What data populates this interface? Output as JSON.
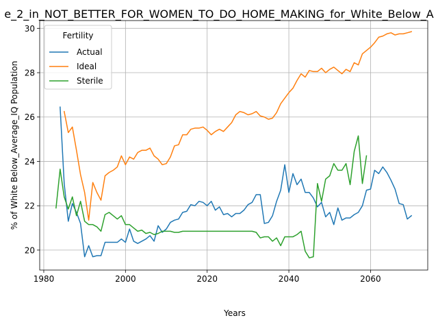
{
  "chart_data": {
    "type": "line",
    "title": "e_2_in_NOT_BETTER_FOR_WOMEN_TO_DO_HOME_MAKING_for_White_Below_A",
    "xlabel": "Years",
    "ylabel": "% of White Below_Average_IQ Population",
    "xlim": [
      1979,
      2074
    ],
    "ylim": [
      19.1,
      30.35
    ],
    "xticks": [
      1980,
      2000,
      2020,
      2040,
      2060
    ],
    "yticks": [
      20,
      22,
      24,
      26,
      28,
      30
    ],
    "grid": true,
    "legend": {
      "title": "Fertility",
      "position": "top-left"
    },
    "series": [
      {
        "name": "Actual",
        "color": "#1f77b4",
        "points": [
          [
            1984,
            26.45
          ],
          [
            1985,
            23.0
          ],
          [
            1986,
            21.3
          ],
          [
            1987,
            22.1
          ],
          [
            1988,
            21.7
          ],
          [
            1989,
            21.2
          ],
          [
            1990,
            19.7
          ],
          [
            1991,
            20.2
          ],
          [
            1992,
            19.7
          ],
          [
            1993,
            19.75
          ],
          [
            1994,
            19.75
          ],
          [
            1995,
            20.35
          ],
          [
            1996,
            20.35
          ],
          [
            1997,
            20.35
          ],
          [
            1998,
            20.35
          ],
          [
            1999,
            20.5
          ],
          [
            2000,
            20.35
          ],
          [
            2001,
            20.95
          ],
          [
            2002,
            20.4
          ],
          [
            2003,
            20.3
          ],
          [
            2004,
            20.4
          ],
          [
            2005,
            20.5
          ],
          [
            2006,
            20.65
          ],
          [
            2007,
            20.4
          ],
          [
            2008,
            21.1
          ],
          [
            2009,
            20.8
          ],
          [
            2010,
            20.95
          ],
          [
            2011,
            21.25
          ],
          [
            2012,
            21.35
          ],
          [
            2013,
            21.4
          ],
          [
            2014,
            21.7
          ],
          [
            2015,
            21.75
          ],
          [
            2016,
            22.05
          ],
          [
            2017,
            22.0
          ],
          [
            2018,
            22.2
          ],
          [
            2019,
            22.15
          ],
          [
            2020,
            22.0
          ],
          [
            2021,
            22.2
          ],
          [
            2022,
            21.8
          ],
          [
            2023,
            21.95
          ],
          [
            2024,
            21.6
          ],
          [
            2025,
            21.65
          ],
          [
            2026,
            21.5
          ],
          [
            2027,
            21.65
          ],
          [
            2028,
            21.65
          ],
          [
            2029,
            21.8
          ],
          [
            2030,
            22.05
          ],
          [
            2031,
            22.15
          ],
          [
            2032,
            22.5
          ],
          [
            2033,
            22.5
          ],
          [
            2034,
            21.2
          ],
          [
            2035,
            21.25
          ],
          [
            2036,
            21.55
          ],
          [
            2037,
            22.2
          ],
          [
            2038,
            22.7
          ],
          [
            2039,
            23.85
          ],
          [
            2040,
            22.6
          ],
          [
            2041,
            23.45
          ],
          [
            2042,
            22.95
          ],
          [
            2043,
            23.2
          ],
          [
            2044,
            22.6
          ],
          [
            2045,
            22.6
          ],
          [
            2046,
            22.35
          ],
          [
            2047,
            21.95
          ],
          [
            2048,
            22.15
          ],
          [
            2049,
            21.5
          ],
          [
            2050,
            21.7
          ],
          [
            2051,
            21.15
          ],
          [
            2052,
            21.9
          ],
          [
            2053,
            21.35
          ],
          [
            2054,
            21.45
          ],
          [
            2055,
            21.45
          ],
          [
            2056,
            21.6
          ],
          [
            2057,
            21.7
          ],
          [
            2058,
            22.0
          ],
          [
            2059,
            22.7
          ],
          [
            2060,
            22.75
          ],
          [
            2061,
            23.6
          ],
          [
            2062,
            23.45
          ],
          [
            2063,
            23.75
          ],
          [
            2064,
            23.5
          ],
          [
            2065,
            23.15
          ],
          [
            2066,
            22.75
          ],
          [
            2067,
            22.1
          ],
          [
            2068,
            22.05
          ],
          [
            2069,
            21.4
          ],
          [
            2070,
            21.55
          ]
        ]
      },
      {
        "name": "Ideal",
        "color": "#ff7f0e",
        "points": [
          [
            1985,
            26.25
          ],
          [
            1986,
            25.3
          ],
          [
            1987,
            25.55
          ],
          [
            1988,
            24.5
          ],
          [
            1989,
            23.4
          ],
          [
            1990,
            22.6
          ],
          [
            1991,
            21.35
          ],
          [
            1992,
            23.05
          ],
          [
            1993,
            22.6
          ],
          [
            1994,
            22.25
          ],
          [
            1995,
            23.35
          ],
          [
            1996,
            23.5
          ],
          [
            1997,
            23.6
          ],
          [
            1998,
            23.75
          ],
          [
            1999,
            24.25
          ],
          [
            2000,
            23.85
          ],
          [
            2001,
            24.2
          ],
          [
            2002,
            24.1
          ],
          [
            2003,
            24.4
          ],
          [
            2004,
            24.5
          ],
          [
            2005,
            24.5
          ],
          [
            2006,
            24.6
          ],
          [
            2007,
            24.25
          ],
          [
            2008,
            24.1
          ],
          [
            2009,
            23.85
          ],
          [
            2010,
            23.9
          ],
          [
            2011,
            24.2
          ],
          [
            2012,
            24.7
          ],
          [
            2013,
            24.75
          ],
          [
            2014,
            25.2
          ],
          [
            2015,
            25.2
          ],
          [
            2016,
            25.45
          ],
          [
            2017,
            25.5
          ],
          [
            2018,
            25.5
          ],
          [
            2019,
            25.55
          ],
          [
            2020,
            25.4
          ],
          [
            2021,
            25.2
          ],
          [
            2022,
            25.35
          ],
          [
            2023,
            25.45
          ],
          [
            2024,
            25.35
          ],
          [
            2025,
            25.55
          ],
          [
            2026,
            25.75
          ],
          [
            2027,
            26.1
          ],
          [
            2028,
            26.25
          ],
          [
            2029,
            26.2
          ],
          [
            2030,
            26.1
          ],
          [
            2031,
            26.15
          ],
          [
            2032,
            26.25
          ],
          [
            2033,
            26.05
          ],
          [
            2034,
            26.0
          ],
          [
            2035,
            25.9
          ],
          [
            2036,
            25.95
          ],
          [
            2037,
            26.2
          ],
          [
            2038,
            26.6
          ],
          [
            2039,
            26.85
          ],
          [
            2040,
            27.1
          ],
          [
            2041,
            27.3
          ],
          [
            2042,
            27.65
          ],
          [
            2043,
            27.95
          ],
          [
            2044,
            27.8
          ],
          [
            2045,
            28.1
          ],
          [
            2046,
            28.05
          ],
          [
            2047,
            28.05
          ],
          [
            2048,
            28.2
          ],
          [
            2049,
            28.0
          ],
          [
            2050,
            28.15
          ],
          [
            2051,
            28.25
          ],
          [
            2052,
            28.1
          ],
          [
            2053,
            27.95
          ],
          [
            2054,
            28.15
          ],
          [
            2055,
            28.05
          ],
          [
            2056,
            28.45
          ],
          [
            2057,
            28.35
          ],
          [
            2058,
            28.85
          ],
          [
            2059,
            29.0
          ],
          [
            2060,
            29.15
          ],
          [
            2061,
            29.35
          ],
          [
            2062,
            29.6
          ],
          [
            2063,
            29.65
          ],
          [
            2064,
            29.75
          ],
          [
            2065,
            29.8
          ],
          [
            2066,
            29.7
          ],
          [
            2067,
            29.75
          ],
          [
            2068,
            29.75
          ],
          [
            2069,
            29.8
          ],
          [
            2070,
            29.85
          ]
        ]
      },
      {
        "name": "Sterile",
        "color": "#2ca02c",
        "points": [
          [
            1983,
            21.9
          ],
          [
            1984,
            23.65
          ],
          [
            1985,
            22.4
          ],
          [
            1986,
            21.85
          ],
          [
            1987,
            22.4
          ],
          [
            1988,
            21.55
          ],
          [
            1989,
            22.2
          ],
          [
            1990,
            21.3
          ],
          [
            1991,
            21.15
          ],
          [
            1992,
            21.15
          ],
          [
            1993,
            21.05
          ],
          [
            1994,
            20.85
          ],
          [
            1995,
            21.6
          ],
          [
            1996,
            21.7
          ],
          [
            1997,
            21.55
          ],
          [
            1998,
            21.4
          ],
          [
            1999,
            21.55
          ],
          [
            2000,
            21.15
          ],
          [
            2001,
            21.15
          ],
          [
            2002,
            21.0
          ],
          [
            2003,
            20.85
          ],
          [
            2004,
            20.9
          ],
          [
            2005,
            20.75
          ],
          [
            2006,
            20.8
          ],
          [
            2007,
            20.7
          ],
          [
            2008,
            20.75
          ],
          [
            2009,
            20.85
          ],
          [
            2010,
            20.85
          ],
          [
            2011,
            20.85
          ],
          [
            2012,
            20.8
          ],
          [
            2013,
            20.8
          ],
          [
            2014,
            20.85
          ],
          [
            2015,
            20.85
          ],
          [
            2016,
            20.85
          ],
          [
            2017,
            20.85
          ],
          [
            2018,
            20.85
          ],
          [
            2019,
            20.85
          ],
          [
            2020,
            20.85
          ],
          [
            2021,
            20.85
          ],
          [
            2022,
            20.85
          ],
          [
            2023,
            20.85
          ],
          [
            2024,
            20.85
          ],
          [
            2025,
            20.85
          ],
          [
            2026,
            20.85
          ],
          [
            2027,
            20.85
          ],
          [
            2028,
            20.85
          ],
          [
            2029,
            20.85
          ],
          [
            2030,
            20.85
          ],
          [
            2031,
            20.85
          ],
          [
            2032,
            20.8
          ],
          [
            2033,
            20.55
          ],
          [
            2034,
            20.6
          ],
          [
            2035,
            20.6
          ],
          [
            2036,
            20.4
          ],
          [
            2037,
            20.55
          ],
          [
            2038,
            20.2
          ],
          [
            2039,
            20.6
          ],
          [
            2040,
            20.6
          ],
          [
            2041,
            20.6
          ],
          [
            2042,
            20.7
          ],
          [
            2043,
            20.85
          ],
          [
            2044,
            19.95
          ],
          [
            2045,
            19.65
          ],
          [
            2046,
            19.7
          ],
          [
            2047,
            23.0
          ],
          [
            2048,
            22.2
          ],
          [
            2049,
            23.2
          ],
          [
            2050,
            23.35
          ],
          [
            2051,
            23.9
          ],
          [
            2052,
            23.6
          ],
          [
            2053,
            23.6
          ],
          [
            2054,
            23.9
          ],
          [
            2055,
            22.95
          ],
          [
            2056,
            24.45
          ],
          [
            2057,
            25.15
          ],
          [
            2058,
            23.0
          ],
          [
            2059,
            24.25
          ]
        ]
      }
    ]
  }
}
